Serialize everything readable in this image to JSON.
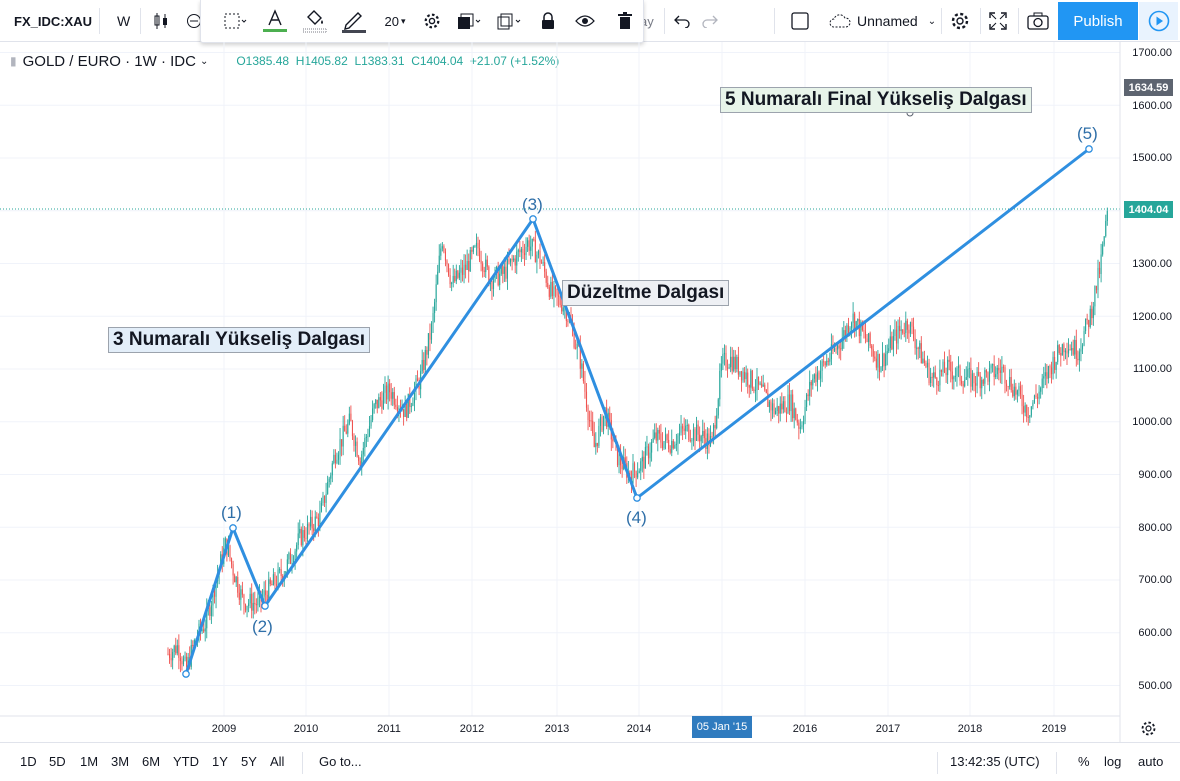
{
  "toolbar": {
    "symbol": "FX_IDC:XAU",
    "interval": "W",
    "layout_name": "Unnamed",
    "publish_label": "Publish",
    "hidden_fragment": "ay"
  },
  "drawbar": {
    "line_width": "20"
  },
  "legend": {
    "title": "GOLD / EURO · 1W · IDC",
    "open": "O1385.48",
    "high": "H1405.82",
    "low": "L1383.31",
    "close": "C1404.04",
    "change": "+21.07 (+1.52%)"
  },
  "price_axis": {
    "labels": [
      "1700.00",
      "1600.00",
      "1500.00",
      "1300.00",
      "1200.00",
      "1100.00",
      "1000.00",
      "900.00",
      "800.00",
      "700.00",
      "600.00",
      "500.00"
    ],
    "badge_target": "1634.59",
    "badge_last": "1404.04",
    "badge_target_color": "#5d6470",
    "badge_last_color": "#26a69a"
  },
  "time_axis": {
    "labels": [
      "2009",
      "2010",
      "2011",
      "2012",
      "2013",
      "2014",
      "2016",
      "2017",
      "2018",
      "2019"
    ],
    "highlight": "05 Jan '15"
  },
  "annotations": {
    "wave3_label": "3 Numaralı Yükseliş Dalgası",
    "correction_label": "Düzeltme Dalgası",
    "wave5_label": "5 Numaralı Final Yükseliş Dalgası",
    "points": [
      "(1)",
      "(2)",
      "(3)",
      "(4)",
      "(5)"
    ],
    "wave3_color": "#1e6fd8",
    "correction_color": "#6b3bc4",
    "wave5_color": "#3aa85a",
    "line_color": "#2f8fe0"
  },
  "chart_data": {
    "type": "candlestick",
    "y_axis_range": [
      500,
      1700
    ],
    "elliott_wave_points": [
      {
        "label": "start",
        "price": 520
      },
      {
        "label": "(1)",
        "price": 800
      },
      {
        "label": "(2)",
        "price": 648
      },
      {
        "label": "(3)",
        "price": 1382
      },
      {
        "label": "(4)",
        "price": 856
      },
      {
        "label": "(5)",
        "price": 1515
      }
    ],
    "last_price": 1404.04
  },
  "bottom": {
    "ranges": [
      "1D",
      "5D",
      "1M",
      "3M",
      "6M",
      "YTD",
      "1Y",
      "5Y",
      "All"
    ],
    "goto": "Go to...",
    "clock": "13:42:35 (UTC)",
    "percent": "%",
    "log": "log",
    "auto": "auto"
  }
}
